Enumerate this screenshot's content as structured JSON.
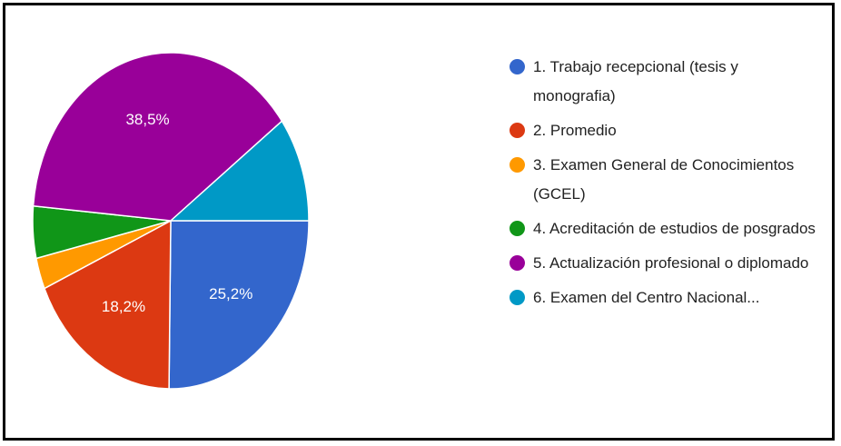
{
  "chart_data": {
    "type": "pie",
    "categories": [
      "1. Trabajo recepcional (tesis y monografia)",
      "2. Promedio",
      "3. Examen General de Conocimientos (GCEL)",
      "4. Acreditación de estudios de posgrados",
      "5. Actualización profesional o diplomado",
      "6. Examen del Centro Nacional..."
    ],
    "values": [
      25.2,
      18.2,
      3.0,
      5.0,
      38.5,
      10.1
    ],
    "value_labels": [
      "25,2%",
      "18,2%",
      null,
      null,
      "38,5%",
      null
    ],
    "colors": [
      "#3366cc",
      "#dc3912",
      "#ff9900",
      "#109618",
      "#990099",
      "#0099c6"
    ],
    "legend": "right"
  }
}
